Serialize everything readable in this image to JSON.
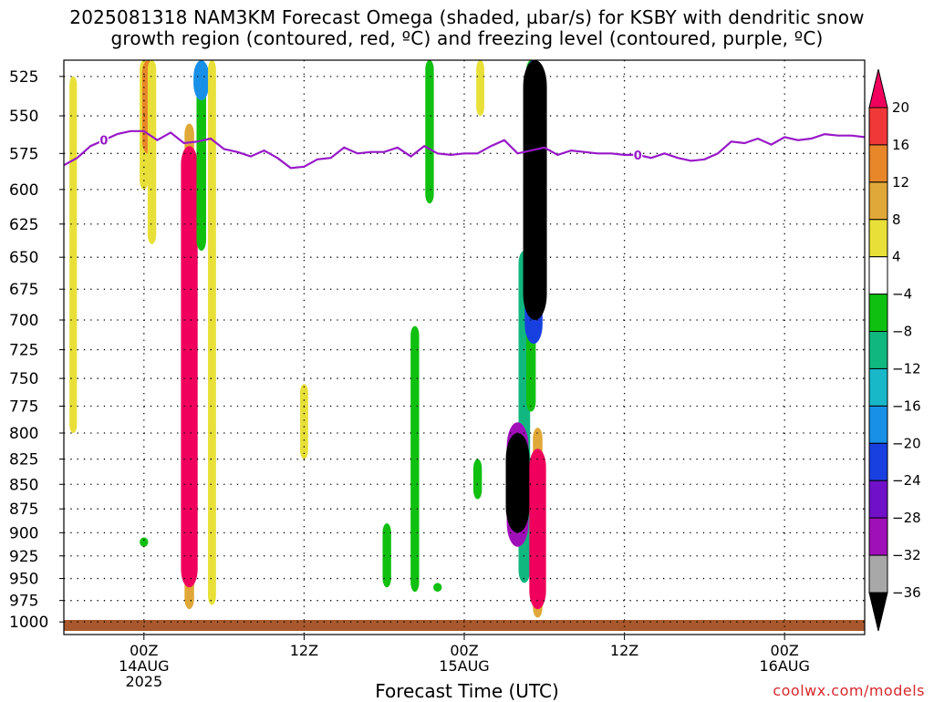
{
  "chart_data": {
    "type": "heatmap",
    "title": "2025081318 NAM3KM Forecast Omega (shaded, µbar/s) for KSBY with dendritic snow",
    "subtitle": "growth region (contoured, red, ºC) and freezing level (contoured, purple, ºC)",
    "xlabel": "Forecast Time (UTC)",
    "x_ticks": [
      {
        "time": "00Z",
        "date": "14AUG",
        "year": "2025",
        "hours": 6
      },
      {
        "time": "12Z",
        "date": "",
        "year": "",
        "hours": 18
      },
      {
        "time": "00Z",
        "date": "15AUG",
        "year": "",
        "hours": 30
      },
      {
        "time": "12Z",
        "date": "",
        "year": "",
        "hours": 42
      },
      {
        "time": "00Z",
        "date": "16AUG",
        "year": "",
        "hours": 54
      }
    ],
    "xlim_hours": [
      0,
      60
    ],
    "y_scale": "log-pressure",
    "y_levels": [
      525,
      550,
      575,
      600,
      625,
      650,
      675,
      700,
      725,
      750,
      775,
      800,
      825,
      850,
      875,
      900,
      925,
      950,
      975,
      1000
    ],
    "ylim_hPa": [
      1015,
      515
    ],
    "grid": true,
    "colorbar": {
      "levels": [
        20,
        16,
        12,
        8,
        4,
        -4,
        -8,
        -12,
        -16,
        -20,
        -24,
        -28,
        -32,
        -36
      ],
      "colors": [
        "#f0005c",
        "#f03838",
        "#e8862a",
        "#e0a838",
        "#e8e038",
        "#ffffff",
        "#10c010",
        "#10b880",
        "#18b8c8",
        "#1890e8",
        "#1840e0",
        "#7010c8",
        "#a010b8",
        "#a8a8a8",
        "#000000"
      ]
    },
    "freezing_level": {
      "label": "0",
      "color": "#9818c8",
      "hours": [
        0,
        1,
        2,
        3,
        4,
        5,
        6,
        7,
        8,
        9,
        10,
        11,
        12,
        13,
        14,
        15,
        16,
        17,
        18,
        19,
        20,
        21,
        22,
        23,
        24,
        25,
        26,
        27,
        28,
        29,
        30,
        31,
        32,
        33,
        34,
        35,
        36,
        37,
        38,
        39,
        40,
        41,
        42,
        43,
        44,
        45,
        46,
        47,
        48,
        49,
        50,
        51,
        52,
        53,
        54,
        55,
        56,
        57,
        58,
        59,
        60
      ],
      "pressure_hPa": [
        583,
        578,
        570,
        566,
        562,
        560,
        560,
        566,
        561,
        568,
        567,
        565,
        572,
        574,
        577,
        573,
        578,
        585,
        584,
        579,
        578,
        571,
        575,
        574,
        574,
        571,
        577,
        570,
        575,
        576,
        575,
        575,
        570,
        566,
        575,
        573,
        571,
        576,
        573,
        574,
        575,
        575,
        576,
        576,
        578,
        575,
        578,
        580,
        579,
        575,
        567,
        568,
        565,
        569,
        564,
        566,
        565,
        562,
        563,
        563,
        564
      ]
    },
    "surface": {
      "color": "#a8582c"
    },
    "omega_features": [
      {
        "hour": 0.7,
        "p_top": 525,
        "p_bot": 800,
        "value": 4
      },
      {
        "hour": 6.0,
        "p_top": 515,
        "p_bot": 600,
        "value": 6
      },
      {
        "hour": 6.3,
        "p_top": 515,
        "p_bot": 575,
        "value": 12
      },
      {
        "hour": 6.6,
        "p_top": 515,
        "p_bot": 640,
        "value": 6
      },
      {
        "hour": 6.0,
        "p_top": 905,
        "p_bot": 915,
        "value": -6
      },
      {
        "hour": 9.4,
        "p_top": 555,
        "p_bot": 985,
        "value": 8
      },
      {
        "hour": 9.4,
        "p_top": 570,
        "p_bot": 960,
        "value": 22
      },
      {
        "hour": 10.3,
        "p_top": 515,
        "p_bot": 645,
        "value": -8
      },
      {
        "hour": 10.3,
        "p_top": 515,
        "p_bot": 540,
        "value": -20
      },
      {
        "hour": 11.1,
        "p_top": 515,
        "p_bot": 980,
        "value": 5
      },
      {
        "hour": 18.0,
        "p_top": 755,
        "p_bot": 825,
        "value": 5
      },
      {
        "hour": 24.2,
        "p_top": 890,
        "p_bot": 960,
        "value": -6
      },
      {
        "hour": 26.3,
        "p_top": 705,
        "p_bot": 965,
        "value": -6
      },
      {
        "hour": 27.4,
        "p_top": 515,
        "p_bot": 610,
        "value": -6
      },
      {
        "hour": 28.0,
        "p_top": 955,
        "p_bot": 965,
        "value": -6
      },
      {
        "hour": 31.0,
        "p_top": 825,
        "p_bot": 865,
        "value": -6
      },
      {
        "hour": 31.2,
        "p_top": 515,
        "p_bot": 550,
        "value": 5
      },
      {
        "hour": 34.5,
        "p_top": 645,
        "p_bot": 955,
        "value": -12
      },
      {
        "hour": 34.0,
        "p_top": 790,
        "p_bot": 915,
        "value": -32
      },
      {
        "hour": 34.0,
        "p_top": 800,
        "p_bot": 900,
        "value": -40
      },
      {
        "hour": 35.0,
        "p_top": 515,
        "p_bot": 780,
        "value": -8
      },
      {
        "hour": 35.2,
        "p_top": 515,
        "p_bot": 720,
        "value": -24
      },
      {
        "hour": 35.3,
        "p_top": 515,
        "p_bot": 700,
        "value": -40
      },
      {
        "hour": 35.5,
        "p_top": 795,
        "p_bot": 995,
        "value": 8
      },
      {
        "hour": 35.5,
        "p_top": 815,
        "p_bot": 985,
        "value": 22
      }
    ]
  },
  "credit": "coolwx.com/models"
}
